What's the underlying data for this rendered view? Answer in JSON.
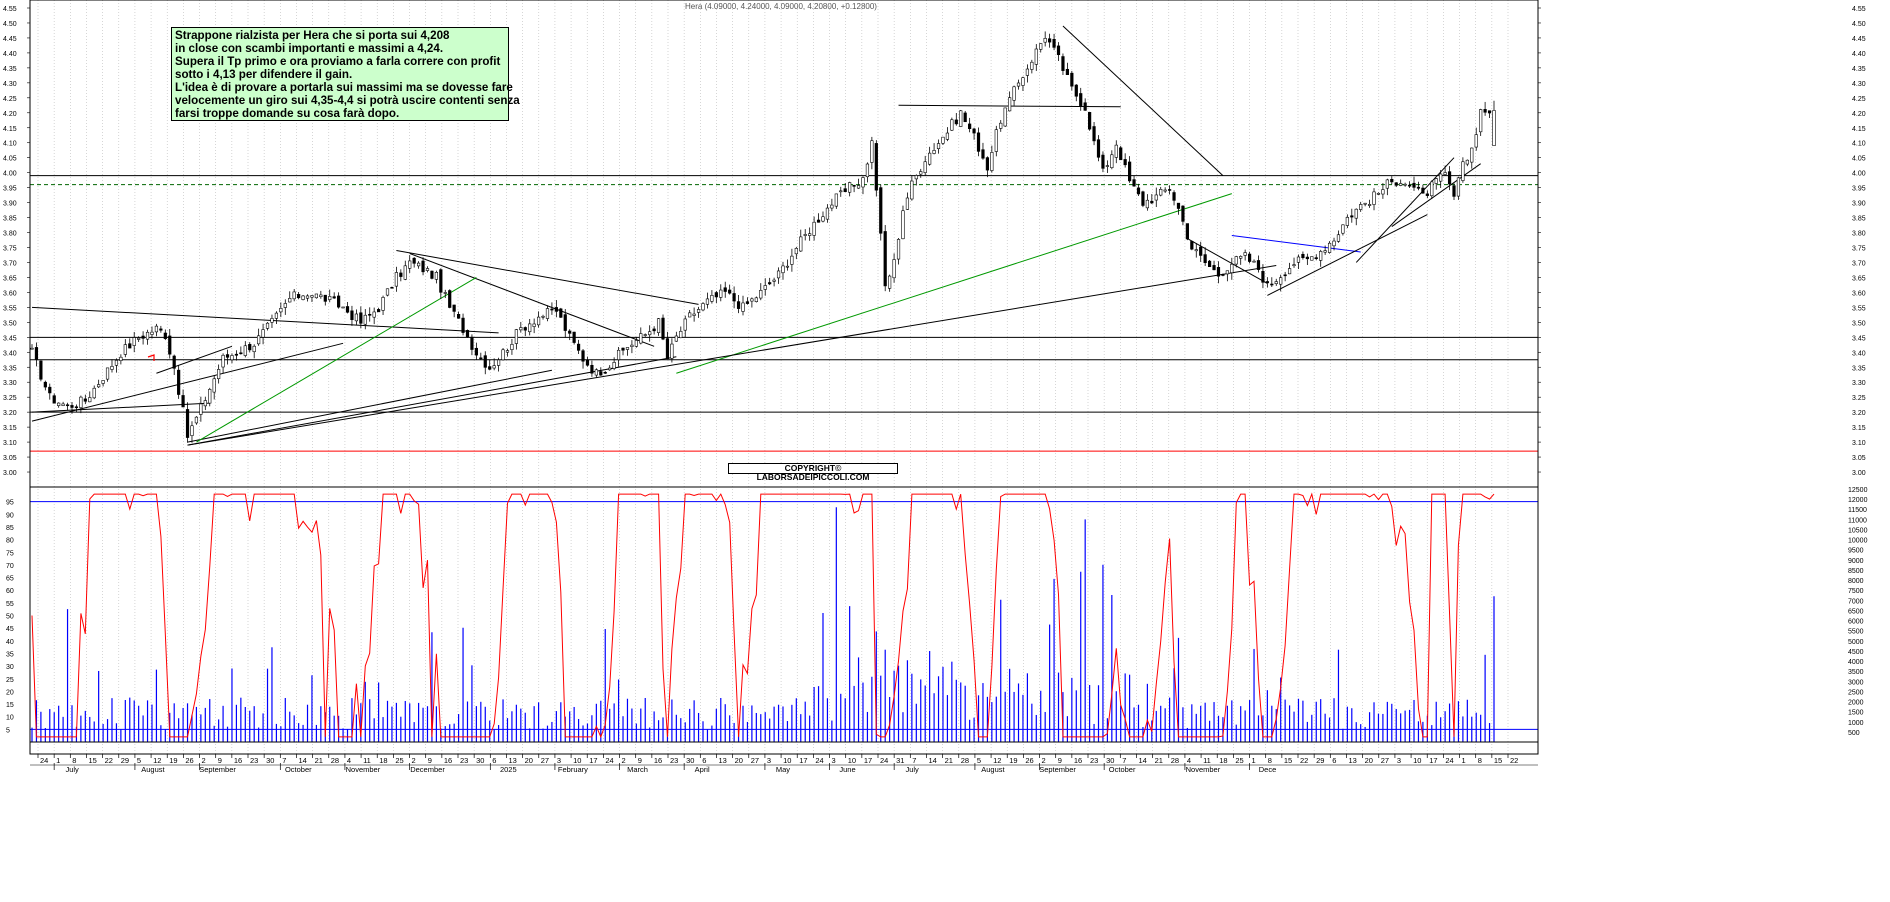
{
  "header": {
    "text": "Hera (4.09000, 4.24000, 4.09000, 4.20800, +0.12800)"
  },
  "annotation": {
    "lines": [
      "Strappone rialzista per Hera che si porta sui 4,208",
      "in close con scambi importanti e massimi a 4,24.",
      "Supera il Tp primo e ora proviamo a farla correre con profit",
      "sotto i 4,13 per difendere il gain.",
      "L'idea è di provare a portarla sui massimi ma se dovesse fare",
      "velocemente un giro sui 4,35-4,4 si potrà uscire contenti senza",
      "farsi troppe domande su cosa farà dopo."
    ]
  },
  "copyright": "COPYRIGHT© LABORSADEIPICCOLI.COM",
  "colors": {
    "candle": "#000000",
    "volume": "#0000ff",
    "oscillator": "#ff0000",
    "support_line": "#000000",
    "red_line": "#ff0000",
    "green_trendline": "#009900",
    "blue_line": "#0000ff",
    "grid": "#bbbbbb"
  },
  "chart_data": [
    {
      "type": "candlestick",
      "title": "Hera",
      "price_axis": {
        "min": 2.95,
        "max": 4.55,
        "step": 0.05,
        "ticks": [
          "3.00",
          "3.05",
          "3.10",
          "3.15",
          "3.20",
          "3.25",
          "3.30",
          "3.35",
          "3.40",
          "3.45",
          "3.50",
          "3.55",
          "3.60",
          "3.65",
          "3.70",
          "3.75",
          "3.80",
          "3.85",
          "3.90",
          "3.95",
          "4.00",
          "4.05",
          "4.10",
          "4.15",
          "4.20",
          "4.25",
          "4.30",
          "4.35",
          "4.40",
          "4.45",
          "4.50",
          "4.55"
        ]
      },
      "x_axis": {
        "date_ticks": [
          "24",
          "1",
          "8",
          "15",
          "22",
          "29",
          "5",
          "12",
          "19",
          "26",
          "2",
          "9",
          "16",
          "23",
          "30",
          "7",
          "14",
          "21",
          "28",
          "4",
          "11",
          "18",
          "25",
          "2",
          "9",
          "16",
          "23",
          "30",
          "6",
          "13",
          "20",
          "27",
          "3",
          "10",
          "17",
          "24",
          "2",
          "9",
          "16",
          "23",
          "30",
          "6",
          "13",
          "20",
          "27",
          "3",
          "10",
          "17",
          "24",
          "3",
          "10",
          "17",
          "24",
          "31",
          "7",
          "14",
          "21",
          "28",
          "5",
          "12",
          "19",
          "26",
          "2",
          "9",
          "16",
          "23",
          "30",
          "7",
          "14",
          "21",
          "28",
          "4",
          "11",
          "18",
          "25",
          "1",
          "8",
          "15",
          "22",
          "29",
          "6",
          "13",
          "20",
          "27",
          "3",
          "10",
          "17",
          "24",
          "1",
          "8",
          "15",
          "22"
        ],
        "month_labels": [
          "July",
          "August",
          "September",
          "October",
          "November",
          "December",
          "2025",
          "February",
          "March",
          "April",
          "May",
          "June",
          "July",
          "August",
          "September",
          "October",
          "November",
          "Dece"
        ]
      },
      "horizontal_levels": [
        {
          "value": 3.99,
          "color": "#000000",
          "style": "solid"
        },
        {
          "value": 3.96,
          "color": "#006600",
          "style": "dashed"
        },
        {
          "value": 3.45,
          "color": "#000000",
          "style": "solid"
        },
        {
          "value": 3.375,
          "color": "#000000",
          "style": "solid"
        },
        {
          "value": 3.2,
          "color": "#000000",
          "style": "solid"
        },
        {
          "value": 3.07,
          "color": "#ff0000",
          "style": "solid"
        }
      ],
      "last_bar": {
        "open": 4.09,
        "high": 4.24,
        "low": 4.09,
        "close": 4.208,
        "change": 0.128
      },
      "close_path": [
        [
          0,
          3.4
        ],
        [
          4,
          3.25
        ],
        [
          8,
          3.22
        ],
        [
          12,
          3.24
        ],
        [
          16,
          3.32
        ],
        [
          20,
          3.4
        ],
        [
          24,
          3.45
        ],
        [
          28,
          3.48
        ],
        [
          30,
          3.46
        ],
        [
          32,
          3.35
        ],
        [
          34,
          3.2
        ],
        [
          35,
          3.12
        ],
        [
          37,
          3.18
        ],
        [
          40,
          3.28
        ],
        [
          43,
          3.38
        ],
        [
          46,
          3.4
        ],
        [
          50,
          3.43
        ],
        [
          54,
          3.5
        ],
        [
          58,
          3.58
        ],
        [
          62,
          3.6
        ],
        [
          66,
          3.58
        ],
        [
          70,
          3.55
        ],
        [
          74,
          3.5
        ],
        [
          78,
          3.55
        ],
        [
          82,
          3.65
        ],
        [
          85,
          3.7
        ],
        [
          88,
          3.68
        ],
        [
          91,
          3.65
        ],
        [
          94,
          3.55
        ],
        [
          97,
          3.48
        ],
        [
          100,
          3.4
        ],
        [
          103,
          3.35
        ],
        [
          106,
          3.4
        ],
        [
          110,
          3.48
        ],
        [
          114,
          3.52
        ],
        [
          118,
          3.54
        ],
        [
          121,
          3.45
        ],
        [
          124,
          3.38
        ],
        [
          127,
          3.33
        ],
        [
          130,
          3.36
        ],
        [
          134,
          3.42
        ],
        [
          138,
          3.46
        ],
        [
          141,
          3.5
        ],
        [
          143,
          3.38
        ],
        [
          145,
          3.45
        ],
        [
          148,
          3.52
        ],
        [
          152,
          3.57
        ],
        [
          156,
          3.6
        ],
        [
          160,
          3.55
        ],
        [
          164,
          3.6
        ],
        [
          168,
          3.66
        ],
        [
          172,
          3.75
        ],
        [
          176,
          3.83
        ],
        [
          180,
          3.9
        ],
        [
          184,
          3.95
        ],
        [
          187,
          3.98
        ],
        [
          189,
          4.1
        ],
        [
          190,
          3.95
        ],
        [
          192,
          3.62
        ],
        [
          194,
          3.7
        ],
        [
          196,
          3.88
        ],
        [
          198,
          3.96
        ],
        [
          201,
          4.05
        ],
        [
          205,
          4.12
        ],
        [
          209,
          4.2
        ],
        [
          212,
          4.12
        ],
        [
          215,
          4.02
        ],
        [
          218,
          4.18
        ],
        [
          222,
          4.3
        ],
        [
          225,
          4.38
        ],
        [
          228,
          4.46
        ],
        [
          231,
          4.38
        ],
        [
          234,
          4.28
        ],
        [
          237,
          4.22
        ],
        [
          239,
          4.1
        ],
        [
          241,
          4.0
        ],
        [
          244,
          4.1
        ],
        [
          247,
          3.97
        ],
        [
          250,
          3.9
        ],
        [
          253,
          3.92
        ],
        [
          256,
          3.95
        ],
        [
          258,
          3.88
        ],
        [
          261,
          3.75
        ],
        [
          264,
          3.7
        ],
        [
          267,
          3.66
        ],
        [
          270,
          3.7
        ],
        [
          273,
          3.72
        ],
        [
          276,
          3.68
        ],
        [
          278,
          3.62
        ],
        [
          281,
          3.66
        ],
        [
          284,
          3.7
        ],
        [
          287,
          3.71
        ],
        [
          290,
          3.74
        ],
        [
          293,
          3.78
        ],
        [
          296,
          3.85
        ],
        [
          299,
          3.89
        ],
        [
          302,
          3.92
        ],
        [
          305,
          3.96
        ],
        [
          308,
          3.98
        ],
        [
          310,
          3.96
        ],
        [
          313,
          3.92
        ],
        [
          316,
          3.97
        ],
        [
          318,
          3.99
        ],
        [
          320,
          3.92
        ],
        [
          322,
          4.02
        ],
        [
          324,
          4.08
        ],
        [
          326,
          4.208
        ]
      ],
      "volume_axis": {
        "min": 0,
        "max": 12500,
        "ticks": [
          "500",
          "1000",
          "1500",
          "2000",
          "2500",
          "3000",
          "3500",
          "4000",
          "4500",
          "5000",
          "5500",
          "6000",
          "6500",
          "7000",
          "7500",
          "8000",
          "8500",
          "9000",
          "9500",
          "10000",
          "10500",
          "11000",
          "11500",
          "12000",
          "12500"
        ]
      },
      "oscillator_axis": {
        "min": 0,
        "max": 100,
        "ticks": [
          "5",
          "10",
          "15",
          "20",
          "25",
          "30",
          "35",
          "40",
          "45",
          "50",
          "55",
          "60",
          "65",
          "70",
          "75",
          "80",
          "85",
          "90",
          "95"
        ],
        "levels": [
          95,
          5
        ]
      }
    }
  ]
}
